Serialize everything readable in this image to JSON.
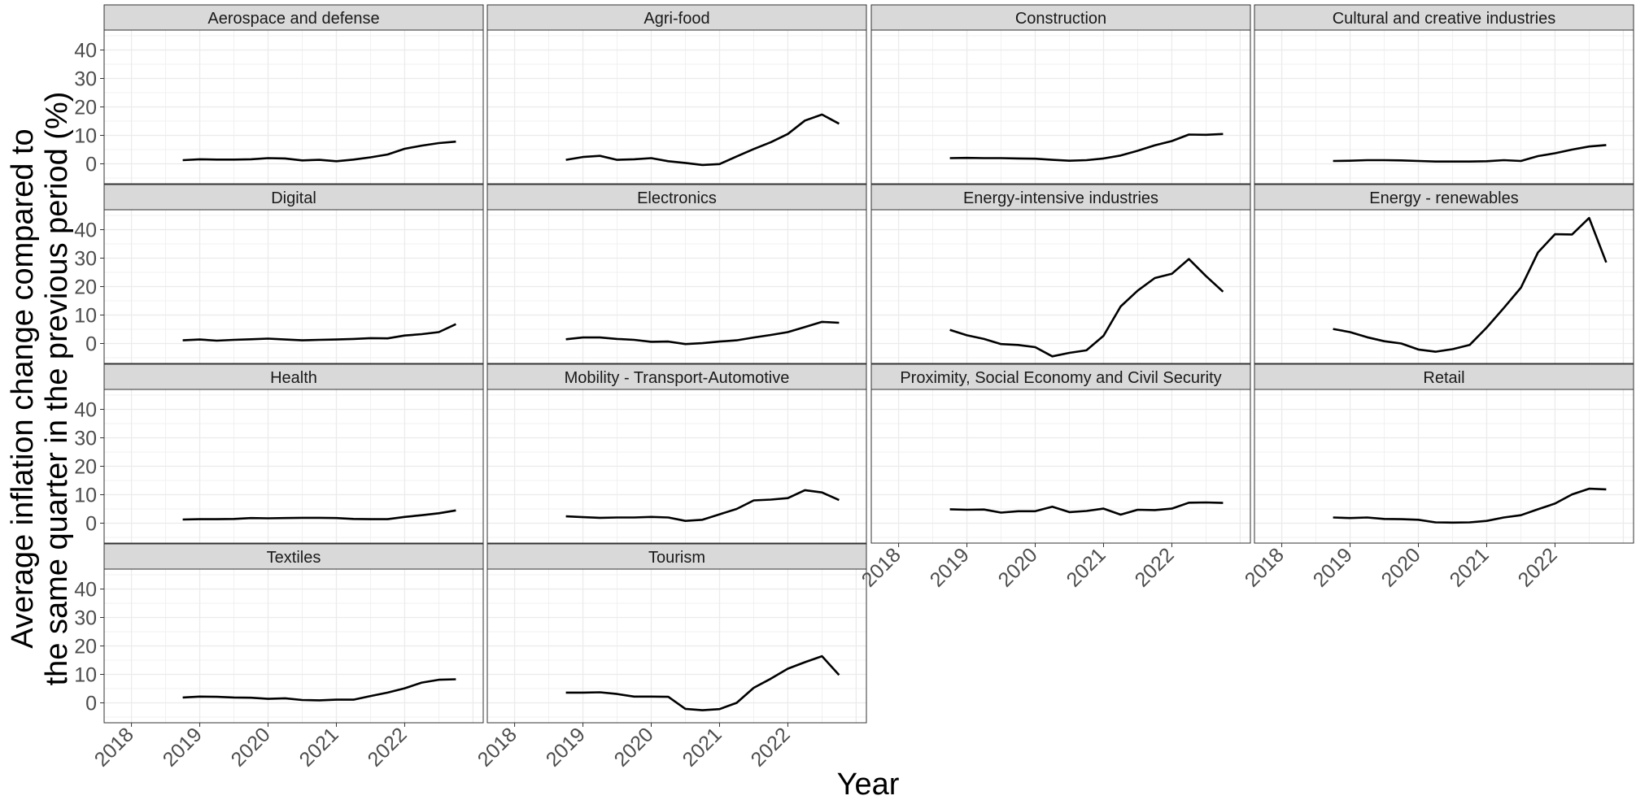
{
  "chart_data": {
    "type": "line",
    "layout": "faceted",
    "xlabel": "Year",
    "ylabel_lines": [
      "Average inflation change compared to",
      "the same quarter in the previous period (%)"
    ],
    "x_ticks": [
      2018,
      2019,
      2020,
      2021,
      2022
    ],
    "y_ticks": [
      0,
      10,
      20,
      30,
      40
    ],
    "xlim": [
      2017.6,
      2023.15
    ],
    "ylim": [
      -7,
      47
    ],
    "grid": true,
    "theme": "bw",
    "strip_color": "#d9d9d9",
    "line_color": "#000000",
    "x": [
      2018.75,
      2019.0,
      2019.25,
      2019.5,
      2019.75,
      2020.0,
      2020.25,
      2020.5,
      2020.75,
      2021.0,
      2021.25,
      2021.5,
      2021.75,
      2022.0,
      2022.25,
      2022.5,
      2022.75
    ],
    "facets": [
      {
        "name": "Aerospace and defense",
        "values": [
          1.3,
          1.6,
          1.5,
          1.5,
          1.6,
          2.0,
          1.9,
          1.2,
          1.4,
          0.9,
          1.5,
          2.3,
          3.3,
          5.3,
          6.4,
          7.3,
          7.8
        ]
      },
      {
        "name": "Agri-food",
        "values": [
          1.4,
          2.4,
          2.8,
          1.4,
          1.6,
          2.0,
          0.9,
          0.3,
          -0.4,
          -0.1,
          2.6,
          5.2,
          7.6,
          10.5,
          15.2,
          17.3,
          14.1
        ]
      },
      {
        "name": "Construction",
        "values": [
          2.0,
          2.1,
          2.0,
          2.0,
          1.9,
          1.8,
          1.4,
          1.1,
          1.3,
          1.9,
          2.9,
          4.6,
          6.5,
          8.0,
          10.3,
          10.2,
          10.5
        ]
      },
      {
        "name": "Cultural and creative industries",
        "values": [
          1.0,
          1.1,
          1.3,
          1.3,
          1.2,
          1.0,
          0.8,
          0.8,
          0.8,
          0.9,
          1.3,
          1.0,
          2.7,
          3.7,
          5.0,
          6.1,
          6.6
        ]
      },
      {
        "name": "Digital",
        "values": [
          1.1,
          1.4,
          1.0,
          1.3,
          1.5,
          1.7,
          1.4,
          1.1,
          1.3,
          1.4,
          1.6,
          1.9,
          1.8,
          2.8,
          3.3,
          4.0,
          6.8
        ]
      },
      {
        "name": "Electronics",
        "values": [
          1.5,
          2.1,
          2.1,
          1.6,
          1.3,
          0.6,
          0.7,
          -0.2,
          0.1,
          0.7,
          1.1,
          2.1,
          3.0,
          4.0,
          5.8,
          7.6,
          7.3
        ]
      },
      {
        "name": "Energy-intensive industries",
        "values": [
          4.8,
          2.9,
          1.6,
          -0.2,
          -0.5,
          -1.3,
          -4.5,
          -3.3,
          -2.4,
          2.7,
          13.0,
          18.6,
          23.0,
          24.5,
          29.7,
          23.7,
          18.2
        ]
      },
      {
        "name": "Energy - renewables",
        "values": [
          5.1,
          4.0,
          2.2,
          0.8,
          0.0,
          -2.1,
          -2.9,
          -2.0,
          -0.5,
          5.6,
          12.5,
          19.6,
          32.0,
          38.4,
          38.3,
          44.1,
          28.5
        ]
      },
      {
        "name": "Health",
        "values": [
          1.3,
          1.4,
          1.4,
          1.5,
          1.8,
          1.7,
          1.8,
          1.9,
          1.9,
          1.8,
          1.5,
          1.4,
          1.4,
          2.2,
          2.8,
          3.5,
          4.5
        ]
      },
      {
        "name": "Mobility - Transport-Automotive",
        "values": [
          2.4,
          2.1,
          1.9,
          2.0,
          2.0,
          2.2,
          2.0,
          0.8,
          1.2,
          3.1,
          5.0,
          8.0,
          8.3,
          8.8,
          11.6,
          10.8,
          8.1
        ]
      },
      {
        "name": "Proximity, Social Economy and Civil Security",
        "values": [
          4.9,
          4.7,
          4.8,
          3.7,
          4.2,
          4.2,
          5.8,
          3.9,
          4.3,
          5.1,
          3.0,
          4.7,
          4.6,
          5.1,
          7.2,
          7.3,
          7.1
        ]
      },
      {
        "name": "Retail",
        "values": [
          2.0,
          1.8,
          2.0,
          1.5,
          1.4,
          1.2,
          0.3,
          0.2,
          0.3,
          0.8,
          2.0,
          2.8,
          4.9,
          6.9,
          10.1,
          12.1,
          11.9
        ]
      },
      {
        "name": "Textiles",
        "values": [
          1.9,
          2.2,
          2.1,
          1.9,
          1.8,
          1.4,
          1.6,
          1.0,
          0.9,
          1.1,
          1.1,
          2.4,
          3.6,
          5.1,
          7.1,
          8.1,
          8.3
        ]
      },
      {
        "name": "Tourism",
        "values": [
          3.6,
          3.6,
          3.7,
          3.1,
          2.2,
          2.2,
          2.1,
          -2.1,
          -2.6,
          -2.2,
          0.0,
          5.3,
          8.5,
          12.0,
          14.3,
          16.4,
          9.8
        ]
      }
    ]
  }
}
